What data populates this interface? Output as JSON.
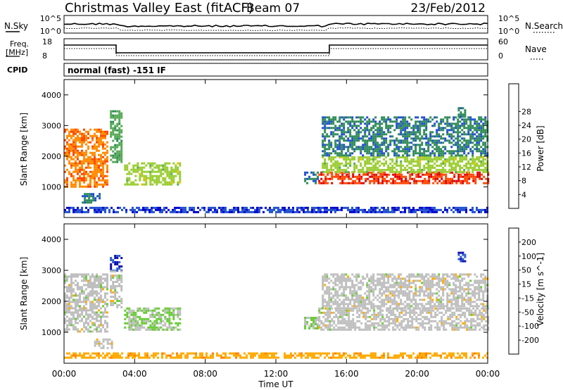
{
  "header": {
    "station": "Christmas Valley East (fitACF)",
    "beam": "Beam 07",
    "date": "23/Feb/2012"
  },
  "noise_panel": {
    "left_label": "N.Sky",
    "left_ticks": [
      "10^5",
      "10^0"
    ],
    "right_label": "N.Search",
    "right_ticks": [
      "10^5",
      "10^0"
    ]
  },
  "freq_panel": {
    "left_label_1": "Freq.",
    "left_label_2": "[MHz]",
    "left_ticks": [
      "18",
      "8"
    ],
    "right_label": "Nave",
    "right_ticks": [
      "60",
      "0"
    ]
  },
  "cpid_panel": {
    "label": "CPID",
    "text": "normal (fast) -151 IF"
  },
  "x_axis": {
    "label": "Time UT",
    "ticks": [
      "00:00",
      "04:00",
      "08:00",
      "12:00",
      "16:00",
      "20:00",
      "00:00"
    ]
  },
  "colors": {
    "power_scale": [
      "#0000cc",
      "#1f4fcf",
      "#2e8b57",
      "#55aa55",
      "#9acd32",
      "#f0c000",
      "#ff8c00",
      "#ff4500",
      "#dd0000"
    ],
    "velocity_scale": [
      "#1010b0",
      "#2d5fd0",
      "#2e8b57",
      "#66cc33",
      "#bebebe",
      "#ffaa00",
      "#ff7f00",
      "#ff4400",
      "#dd0000"
    ]
  },
  "chart_data": [
    {
      "type": "heatmap",
      "title": "",
      "xlabel": "",
      "ylabel": "Slant Range [km]",
      "xlim": [
        0,
        24
      ],
      "ylim": [
        0,
        4500
      ],
      "y_ticks": [
        "1000",
        "2000",
        "3000",
        "4000"
      ],
      "colorbar": {
        "label": "Power [dB]",
        "range": [
          0,
          32
        ],
        "ticks": [
          "4",
          "8",
          "12",
          "16",
          "20",
          "24",
          "28"
        ]
      },
      "regions": [
        {
          "t": [
            0.0,
            2.4
          ],
          "r": [
            1000,
            2900
          ],
          "value": 24
        },
        {
          "t": [
            2.6,
            3.2
          ],
          "r": [
            1800,
            3500
          ],
          "value": 12
        },
        {
          "t": [
            3.4,
            6.6
          ],
          "r": [
            1100,
            1800
          ],
          "value": 16
        },
        {
          "t": [
            1.0,
            2.0
          ],
          "r": [
            500,
            800
          ],
          "value": 8
        },
        {
          "t": [
            0.0,
            24.0
          ],
          "r": [
            150,
            350
          ],
          "value": 4
        },
        {
          "t": [
            13.6,
            14.4
          ],
          "r": [
            1100,
            1500
          ],
          "value": 8
        },
        {
          "t": [
            14.4,
            24.0
          ],
          "r": [
            1100,
            1500
          ],
          "value": 28
        },
        {
          "t": [
            14.6,
            24.0
          ],
          "r": [
            1500,
            2000
          ],
          "value": 16
        },
        {
          "t": [
            14.6,
            24.0
          ],
          "r": [
            2000,
            3300
          ],
          "value": 8
        },
        {
          "t": [
            22.3,
            22.7
          ],
          "r": [
            3300,
            3600
          ],
          "value": 8
        }
      ]
    },
    {
      "type": "heatmap",
      "title": "",
      "xlabel": "Time UT",
      "ylabel": "Slant Range [km]",
      "xlim": [
        0,
        24
      ],
      "ylim": [
        0,
        4500
      ],
      "y_ticks": [
        "1000",
        "2000",
        "3000",
        "4000"
      ],
      "colorbar": {
        "label": "Velocity [m s^-1]",
        "range": [
          -250,
          250
        ],
        "ticks": [
          "200",
          "100",
          "50",
          "15",
          "-15",
          "-50",
          "-100",
          "-200"
        ]
      },
      "regions": [
        {
          "t": [
            0.0,
            2.4
          ],
          "r": [
            1000,
            2900
          ],
          "value": 0
        },
        {
          "t": [
            2.6,
            3.2
          ],
          "r": [
            3000,
            3500
          ],
          "value": 200
        },
        {
          "t": [
            2.6,
            3.2
          ],
          "r": [
            1800,
            3000
          ],
          "value": 0
        },
        {
          "t": [
            3.4,
            6.6
          ],
          "r": [
            1100,
            1800
          ],
          "value": 30
        },
        {
          "t": [
            1.7,
            2.7
          ],
          "r": [
            500,
            800
          ],
          "value": 0
        },
        {
          "t": [
            0.0,
            24.0
          ],
          "r": [
            150,
            350
          ],
          "value": -60
        },
        {
          "t": [
            13.6,
            14.4
          ],
          "r": [
            1100,
            1500
          ],
          "value": 30
        },
        {
          "t": [
            14.4,
            24.0
          ],
          "r": [
            1100,
            1800
          ],
          "value": 0
        },
        {
          "t": [
            14.6,
            24.0
          ],
          "r": [
            1800,
            2900
          ],
          "value": 0
        },
        {
          "t": [
            22.3,
            22.7
          ],
          "r": [
            3300,
            3600
          ],
          "value": 200
        }
      ]
    }
  ]
}
